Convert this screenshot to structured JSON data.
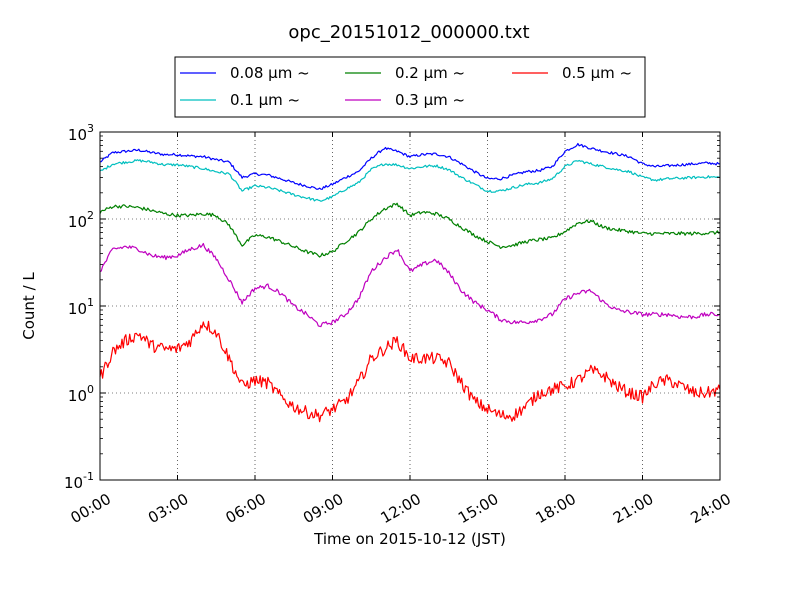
{
  "chart_data": {
    "type": "line",
    "title": "opc_20151012_000000.txt",
    "xlabel": "Time on 2015-10-12 (JST)",
    "ylabel": "Count / L",
    "y_scale": "log",
    "ylim": [
      0.1,
      1000
    ],
    "xlim": [
      "00:00",
      "24:00"
    ],
    "grid": true,
    "legend_position": "top-center",
    "x_ticks": [
      "00:00",
      "03:00",
      "06:00",
      "09:00",
      "12:00",
      "15:00",
      "18:00",
      "21:00",
      "24:00"
    ],
    "y_ticks": [
      {
        "base": "10",
        "exp": "-1",
        "value": 0.1
      },
      {
        "base": "10",
        "exp": "0",
        "value": 1
      },
      {
        "base": "10",
        "exp": "1",
        "value": 10
      },
      {
        "base": "10",
        "exp": "2",
        "value": 100
      },
      {
        "base": "10",
        "exp": "3",
        "value": 1000
      }
    ],
    "x": [
      "00:00",
      "00:30",
      "01:00",
      "01:30",
      "02:00",
      "02:30",
      "03:00",
      "03:30",
      "04:00",
      "04:30",
      "05:00",
      "05:30",
      "06:00",
      "06:30",
      "07:00",
      "07:30",
      "08:00",
      "08:30",
      "09:00",
      "09:30",
      "10:00",
      "10:30",
      "11:00",
      "11:30",
      "12:00",
      "12:30",
      "13:00",
      "13:30",
      "14:00",
      "14:30",
      "15:00",
      "15:30",
      "16:00",
      "16:30",
      "17:00",
      "17:30",
      "18:00",
      "18:30",
      "19:00",
      "19:30",
      "20:00",
      "20:30",
      "21:00",
      "21:30",
      "22:00",
      "22:30",
      "23:00",
      "23:30",
      "24:00"
    ],
    "series": [
      {
        "name": "0.08 μm ~",
        "color": "#0000ff",
        "noise": 0.03,
        "values": [
          450,
          580,
          600,
          620,
          580,
          550,
          550,
          530,
          520,
          480,
          450,
          300,
          330,
          320,
          290,
          260,
          240,
          220,
          250,
          300,
          350,
          500,
          650,
          600,
          520,
          550,
          560,
          520,
          430,
          350,
          290,
          290,
          320,
          350,
          360,
          400,
          600,
          720,
          650,
          600,
          560,
          520,
          430,
          400,
          410,
          420,
          430,
          440,
          430
        ]
      },
      {
        "name": "0.1 μm ~",
        "color": "#00bfbf",
        "noise": 0.03,
        "values": [
          350,
          430,
          450,
          470,
          450,
          420,
          420,
          400,
          380,
          350,
          330,
          210,
          240,
          230,
          210,
          190,
          175,
          160,
          180,
          220,
          260,
          370,
          430,
          420,
          380,
          400,
          410,
          370,
          300,
          250,
          210,
          210,
          230,
          250,
          260,
          290,
          400,
          470,
          430,
          400,
          370,
          350,
          300,
          280,
          290,
          295,
          300,
          305,
          300
        ]
      },
      {
        "name": "0.2 μm ~",
        "color": "#008000",
        "noise": 0.04,
        "values": [
          120,
          140,
          140,
          135,
          125,
          115,
          110,
          110,
          115,
          110,
          85,
          50,
          65,
          62,
          55,
          48,
          42,
          38,
          42,
          55,
          70,
          100,
          130,
          150,
          110,
          120,
          115,
          100,
          80,
          65,
          55,
          48,
          50,
          55,
          58,
          60,
          72,
          90,
          95,
          80,
          75,
          72,
          68,
          68,
          68,
          68,
          68,
          69,
          70
        ]
      },
      {
        "name": "0.3 μm ~",
        "color": "#bf00bf",
        "noise": 0.05,
        "values": [
          25,
          45,
          48,
          45,
          38,
          36,
          38,
          45,
          50,
          35,
          20,
          11,
          16,
          17,
          14,
          10,
          8,
          6,
          6.5,
          8,
          12,
          25,
          35,
          45,
          25,
          30,
          34,
          24,
          15,
          11,
          9,
          7,
          6.5,
          6.5,
          7,
          8,
          12,
          14,
          15,
          11,
          9,
          8.5,
          8,
          8,
          8,
          7.5,
          7.5,
          8,
          8
        ]
      },
      {
        "name": "0.5 μm ~",
        "color": "#ff0000",
        "noise": 0.14,
        "values": [
          1.5,
          3,
          4,
          4.8,
          3.5,
          3.2,
          3.2,
          4,
          6.5,
          5,
          2.5,
          1.2,
          1.4,
          1.3,
          0.9,
          0.7,
          0.6,
          0.55,
          0.65,
          0.8,
          1.3,
          2.5,
          3.2,
          4,
          2.5,
          2.5,
          2.5,
          2.2,
          1.3,
          0.8,
          0.65,
          0.55,
          0.55,
          0.7,
          1.0,
          1.1,
          1.2,
          1.4,
          1.8,
          1.6,
          1.2,
          1.0,
          0.9,
          1.3,
          1.4,
          1.2,
          1.0,
          1.0,
          1.1
        ]
      }
    ]
  }
}
